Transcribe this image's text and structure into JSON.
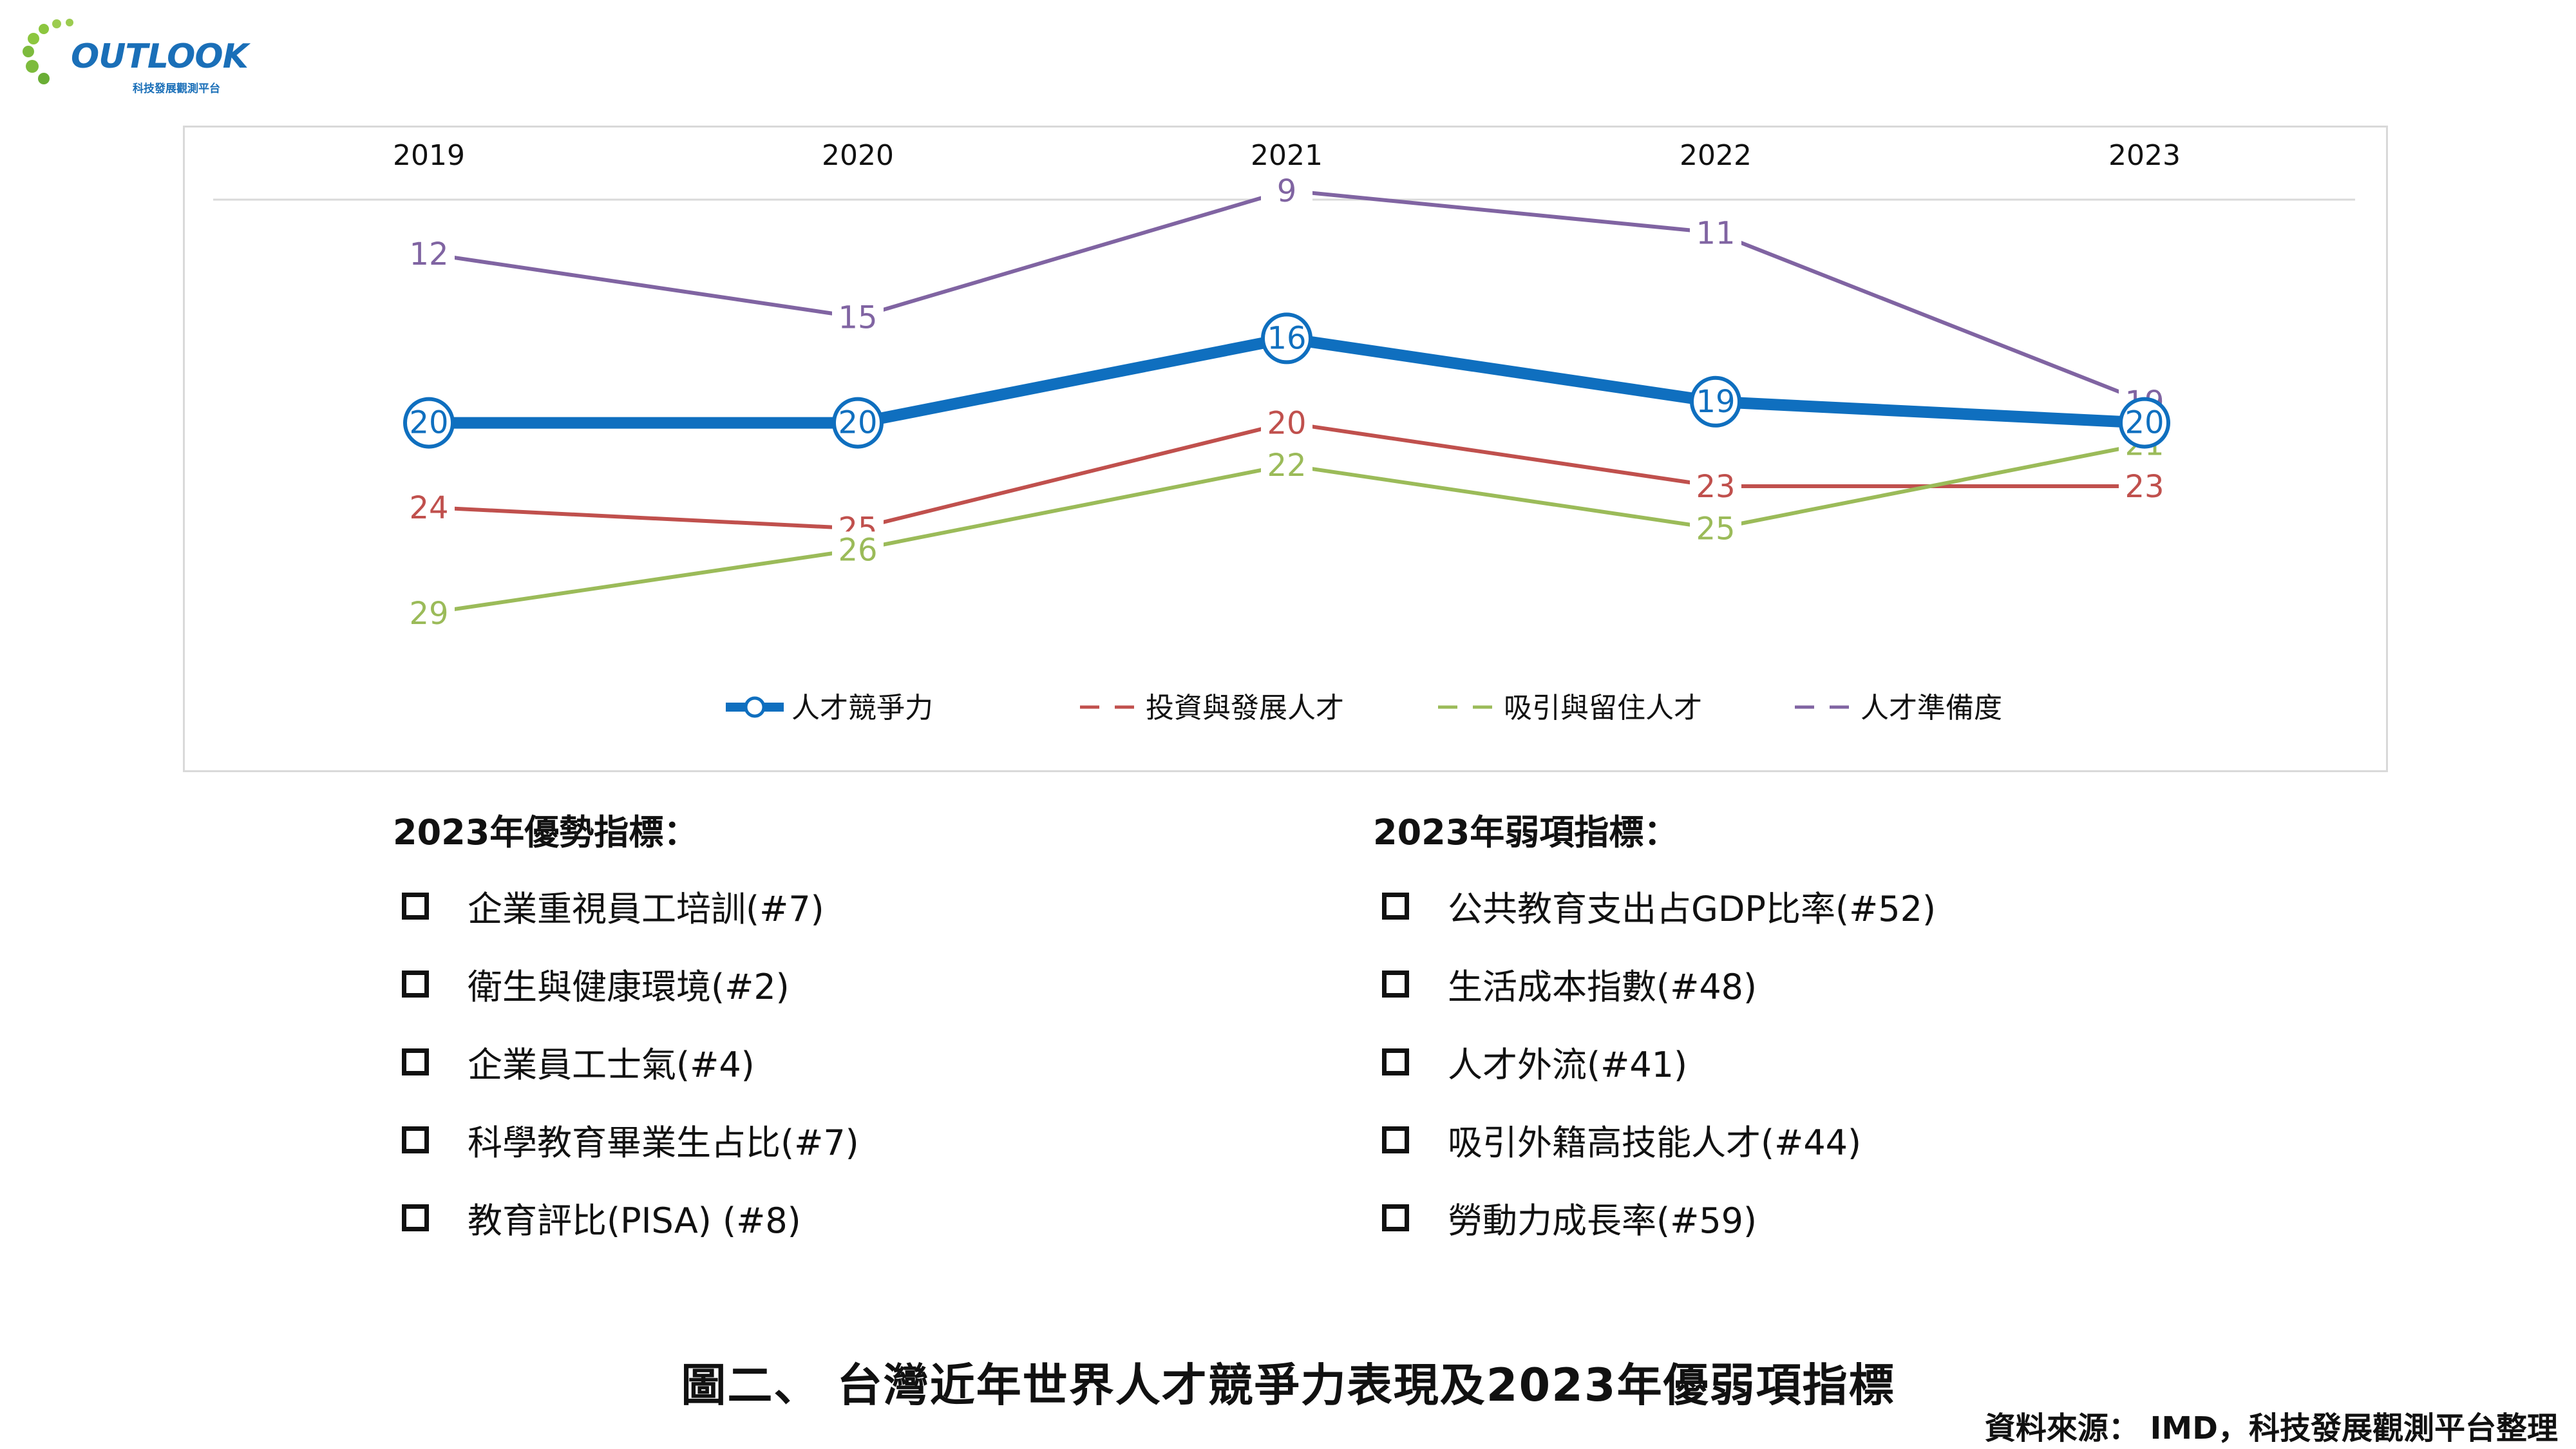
{
  "logo": {
    "text": "OUTLOOK",
    "subtitle": "科技發展觀測平台"
  },
  "chart_data": {
    "type": "line",
    "y_axis": "rank",
    "y_inverted": true,
    "ylim": [
      8,
      30
    ],
    "grid": false,
    "legend_position": "bottom",
    "x": [
      "2019",
      "2020",
      "2021",
      "2022",
      "2023"
    ],
    "series": [
      {
        "name": "人才競爭力",
        "values": [
          20,
          20,
          16,
          19,
          20
        ],
        "color": "#0f6fbf",
        "style": "solid-thick-markers"
      },
      {
        "name": "投資與發展人才",
        "values": [
          24,
          25,
          20,
          23,
          23
        ],
        "color": "#c0504d",
        "style": "line"
      },
      {
        "name": "吸引與留住人才",
        "values": [
          29,
          26,
          22,
          25,
          21
        ],
        "color": "#9bbb59",
        "style": "line"
      },
      {
        "name": "人才準備度",
        "values": [
          12,
          15,
          9,
          11,
          19
        ],
        "color": "#8064a2",
        "style": "line"
      }
    ]
  },
  "strengths": {
    "title": "2023年優勢指標：",
    "items": [
      "企業重視員工培訓(#7)",
      "衛生與健康環境(#2)",
      "企業員工士氣(#4)",
      "科學教育畢業生占比(#7)",
      "教育評比(PISA) (#8)"
    ]
  },
  "weaknesses": {
    "title": "2023年弱項指標：",
    "items": [
      "公共教育支出占GDP比率(#52)",
      "生活成本指數(#48)",
      "人才外流(#41)",
      "吸引外籍高技能人才(#44)",
      "勞動力成長率(#59)"
    ]
  },
  "caption": "圖二、 台灣近年世界人才競爭力表現及2023年優弱項指標",
  "source": "資料來源： IMD，科技發展觀測平台整理"
}
